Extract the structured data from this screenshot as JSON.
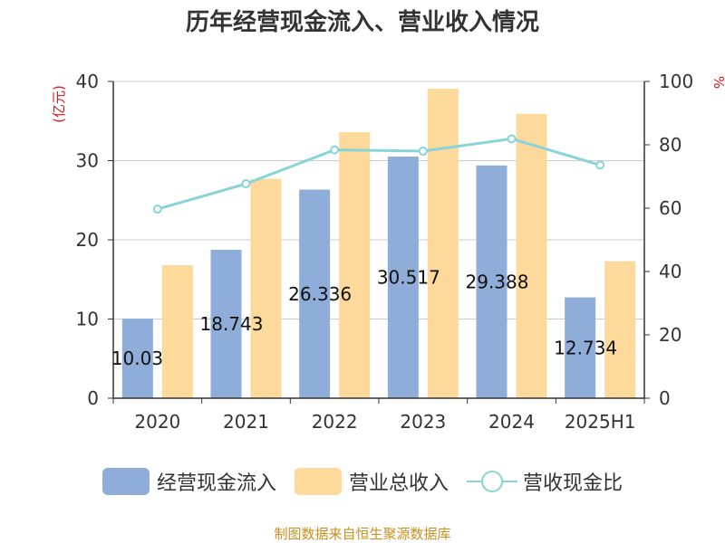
{
  "header": {
    "title": "历年经营现金流入、营业收入情况"
  },
  "axes": {
    "left_unit": "(亿元)",
    "right_unit": "%"
  },
  "legend": {
    "cash_inflow": "经营现金流入",
    "revenue": "营业总收入",
    "ratio": "营收现金比"
  },
  "footer": {
    "source": "制图数据来自恒生聚源数据库"
  },
  "colors": {
    "cash_inflow": "#8eadd9",
    "revenue": "#fdd99b",
    "ratio": "#88d4d8",
    "axis": "#333333",
    "grid": "#cccccc"
  },
  "chart_data": {
    "type": "bar",
    "categories": [
      "2020",
      "2021",
      "2022",
      "2023",
      "2024",
      "2025H1"
    ],
    "series": [
      {
        "name": "经营现金流入",
        "type": "bar",
        "axis": "left",
        "values": [
          10.03,
          18.743,
          26.336,
          30.517,
          29.388,
          12.734
        ],
        "data_labels": [
          "10.03",
          "18.743",
          "26.336",
          "30.517",
          "29.388",
          "12.734"
        ]
      },
      {
        "name": "营业总收入",
        "type": "bar",
        "axis": "left",
        "values": [
          16.8,
          27.7,
          33.6,
          39.1,
          35.9,
          17.3
        ]
      },
      {
        "name": "营收现金比",
        "type": "line",
        "axis": "right",
        "values": [
          59.7,
          67.7,
          78.4,
          78.0,
          81.9,
          73.6
        ]
      }
    ],
    "y_left": {
      "min": 0,
      "max": 40,
      "ticks": [
        0,
        10,
        20,
        30,
        40
      ]
    },
    "y_right": {
      "min": 0,
      "max": 100,
      "ticks": [
        0,
        20,
        40,
        60,
        80,
        100
      ]
    },
    "grid": true,
    "legend_position": "bottom"
  }
}
